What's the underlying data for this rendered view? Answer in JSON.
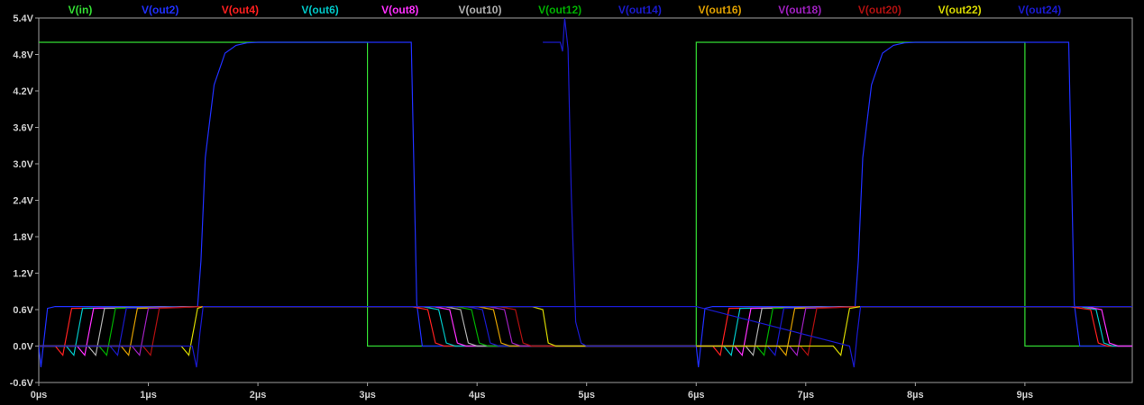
{
  "chart_data": {
    "type": "line",
    "title": "",
    "xlabel": "",
    "ylabel": "",
    "xlim": [
      0,
      9.98
    ],
    "ylim": [
      -0.6,
      5.4
    ],
    "x_ticks": [
      {
        "value": 0,
        "label": "0µs"
      },
      {
        "value": 1,
        "label": "1µs"
      },
      {
        "value": 2,
        "label": "2µs"
      },
      {
        "value": 3,
        "label": "3µs"
      },
      {
        "value": 4,
        "label": "4µs"
      },
      {
        "value": 5,
        "label": "5µs"
      },
      {
        "value": 6,
        "label": "6µs"
      },
      {
        "value": 7,
        "label": "7µs"
      },
      {
        "value": 8,
        "label": "8µs"
      },
      {
        "value": 9,
        "label": "9µs"
      }
    ],
    "y_ticks": [
      {
        "value": -0.6,
        "label": "-0.6V"
      },
      {
        "value": 0.0,
        "label": "0.0V"
      },
      {
        "value": 0.6,
        "label": "0.6V"
      },
      {
        "value": 1.2,
        "label": "1.2V"
      },
      {
        "value": 1.8,
        "label": "1.8V"
      },
      {
        "value": 2.4,
        "label": "2.4V"
      },
      {
        "value": 3.0,
        "label": "3.0V"
      },
      {
        "value": 3.6,
        "label": "3.6V"
      },
      {
        "value": 4.2,
        "label": "4.2V"
      },
      {
        "value": 4.8,
        "label": "4.8V"
      },
      {
        "value": 5.4,
        "label": "5.4V"
      }
    ],
    "legend_position": "top",
    "grid": false,
    "series": [
      {
        "name": "V(in)",
        "color": "#33dd33",
        "x": [
          0,
          3,
          3,
          6,
          6,
          9,
          9,
          9.98
        ],
        "y": [
          5,
          5,
          0,
          0,
          5,
          5,
          0,
          0
        ]
      },
      {
        "name": "V(out2)",
        "color": "#2030ff",
        "x": [
          0,
          0.02,
          0.08,
          0.15,
          1.45,
          1.48,
          1.52,
          1.6,
          1.7,
          1.8,
          1.9,
          2.0,
          3.4,
          3.45,
          3.5,
          6.0,
          6.02,
          6.08,
          6.15,
          7.45,
          7.48,
          7.52,
          7.6,
          7.7,
          7.8,
          7.9,
          8.0,
          9.4,
          9.45,
          9.5,
          9.98
        ],
        "y": [
          0.0,
          -0.35,
          0.62,
          0.65,
          0.65,
          1.4,
          3.1,
          4.3,
          4.82,
          4.95,
          4.99,
          5.0,
          5.0,
          0.7,
          0.0,
          0.0,
          -0.35,
          0.62,
          0.65,
          0.65,
          1.4,
          3.1,
          4.3,
          4.82,
          4.95,
          4.99,
          5.0,
          5.0,
          0.7,
          0.0,
          0.0
        ]
      },
      {
        "name": "V(out4)",
        "color": "#ff2020",
        "x": [
          0,
          0.15,
          0.22,
          0.3,
          1.5,
          3.4,
          3.55,
          3.62,
          3.7,
          6.0,
          6.15,
          6.22,
          6.3,
          7.5,
          9.4,
          9.6,
          9.67,
          9.75,
          9.98
        ],
        "y": [
          0.0,
          0.0,
          -0.15,
          0.62,
          0.65,
          0.65,
          0.6,
          0.05,
          0.0,
          0.0,
          0.0,
          -0.15,
          0.62,
          0.65,
          0.65,
          0.6,
          0.05,
          0.0,
          0.0
        ]
      },
      {
        "name": "V(out6)",
        "color": "#00c8c8",
        "x": [
          0,
          0.25,
          0.32,
          0.4,
          1.5,
          3.5,
          3.65,
          3.72,
          3.8,
          6.0,
          6.25,
          6.32,
          6.4,
          7.5,
          9.5,
          9.65,
          9.72,
          9.8,
          9.98
        ],
        "y": [
          0.0,
          0.0,
          -0.15,
          0.62,
          0.65,
          0.65,
          0.6,
          0.05,
          0.0,
          0.0,
          0.0,
          -0.15,
          0.62,
          0.65,
          0.65,
          0.6,
          0.05,
          0.0,
          0.0
        ]
      },
      {
        "name": "V(out8)",
        "color": "#ff30ff",
        "x": [
          0,
          0.35,
          0.42,
          0.5,
          1.5,
          3.6,
          3.75,
          3.82,
          3.9,
          6.0,
          6.35,
          6.42,
          6.5,
          7.5,
          9.55,
          9.7,
          9.77,
          9.85,
          9.98
        ],
        "y": [
          0.0,
          0.0,
          -0.15,
          0.62,
          0.65,
          0.65,
          0.6,
          0.05,
          0.0,
          0.0,
          0.0,
          -0.15,
          0.62,
          0.65,
          0.65,
          0.6,
          0.05,
          0.0,
          0.0
        ]
      },
      {
        "name": "V(out10)",
        "color": "#b0b0b0",
        "x": [
          0,
          0.45,
          0.52,
          0.6,
          1.5,
          3.7,
          3.85,
          3.92,
          4.0,
          6.0,
          6.45,
          6.52,
          6.6,
          7.5,
          9.98
        ],
        "y": [
          0.0,
          0.0,
          -0.15,
          0.62,
          0.65,
          0.65,
          0.6,
          0.05,
          0.0,
          0.0,
          0.0,
          -0.15,
          0.62,
          0.65,
          0.65
        ]
      },
      {
        "name": "V(out12)",
        "color": "#00b000",
        "x": [
          0,
          0.55,
          0.62,
          0.7,
          1.5,
          3.8,
          3.95,
          4.02,
          4.1,
          6.0,
          6.55,
          6.62,
          6.7,
          7.5,
          9.98
        ],
        "y": [
          0.0,
          0.0,
          -0.15,
          0.62,
          0.65,
          0.65,
          0.6,
          0.05,
          0.0,
          0.0,
          0.0,
          -0.15,
          0.62,
          0.65,
          0.65
        ]
      },
      {
        "name": "V(out14)",
        "color": "#1a1acc",
        "x": [
          0,
          0.65,
          0.72,
          0.8,
          1.5,
          3.9,
          4.05,
          4.12,
          4.2,
          4.7,
          4.76,
          4.8,
          4.83,
          4.9,
          5.0,
          6.0,
          6.65,
          6.72,
          6.8,
          7.5,
          9.98
        ],
        "y": [
          0.0,
          0.0,
          -0.15,
          0.62,
          0.65,
          0.65,
          0.6,
          0.05,
          0.0,
          0.0,
          0.0,
          0.0,
          0.0,
          0.0,
          0.0,
          0.0,
          0.0,
          -0.15,
          0.62,
          0.65,
          0.65
        ]
      },
      {
        "name": "V(out16)",
        "color": "#e0a000",
        "x": [
          0,
          0.75,
          0.82,
          0.9,
          1.5,
          4.0,
          4.15,
          4.22,
          4.3,
          6.0,
          6.75,
          6.82,
          6.9,
          7.5,
          9.98
        ],
        "y": [
          0.0,
          0.0,
          -0.15,
          0.62,
          0.65,
          0.65,
          0.6,
          0.05,
          0.0,
          0.0,
          0.0,
          -0.15,
          0.62,
          0.65,
          0.65
        ]
      },
      {
        "name": "V(out18)",
        "color": "#a020c0",
        "x": [
          0,
          0.85,
          0.92,
          1.0,
          1.5,
          4.1,
          4.25,
          4.32,
          4.4,
          6.0,
          6.85,
          6.92,
          7.0,
          7.5,
          9.98
        ],
        "y": [
          0.0,
          0.0,
          -0.15,
          0.62,
          0.65,
          0.65,
          0.6,
          0.05,
          0.0,
          0.0,
          0.0,
          -0.15,
          0.62,
          0.65,
          0.65
        ]
      },
      {
        "name": "V(out20)",
        "color": "#b01010",
        "x": [
          0,
          0.95,
          1.02,
          1.1,
          1.5,
          4.2,
          4.35,
          4.42,
          4.5,
          6.0,
          6.95,
          7.02,
          7.1,
          7.5,
          9.98
        ],
        "y": [
          0.0,
          0.0,
          -0.15,
          0.62,
          0.65,
          0.65,
          0.6,
          0.05,
          0.0,
          0.0,
          0.0,
          -0.15,
          0.62,
          0.65,
          0.65
        ]
      },
      {
        "name": "V(out22)",
        "color": "#d8d800",
        "x": [
          0,
          1.3,
          1.37,
          1.45,
          1.5,
          4.5,
          4.6,
          4.65,
          4.72,
          6.0,
          7.25,
          7.32,
          7.4,
          7.5,
          9.98
        ],
        "y": [
          0.0,
          0.0,
          -0.15,
          0.62,
          0.65,
          0.65,
          0.6,
          0.05,
          0.0,
          0.0,
          0.0,
          -0.15,
          0.62,
          0.65,
          0.65
        ]
      },
      {
        "name": "V(out24)",
        "color": "#1a1ad0",
        "x": [
          0,
          1.4,
          1.44,
          1.47,
          1.5,
          1.9,
          2.0,
          4.7,
          4.76,
          4.8,
          4.83,
          4.86,
          4.9,
          4.95,
          5.0,
          6.0,
          7.4,
          7.44,
          7.47,
          7.5,
          7.9,
          8.0,
          9.98
        ],
        "y": [
          0.0,
          0.0,
          -0.35,
          0.2,
          0.65,
          0.65,
          0.65,
          0.65,
          0.65,
          0.65,
          0.65,
          0.65,
          0.65,
          0.65,
          0.65,
          0.65,
          0.0,
          -0.35,
          0.2,
          0.65,
          0.65,
          0.65,
          0.65
        ]
      },
      {
        "name": "V(out14)",
        "color": "#1a1acc",
        "x": [
          4.6,
          4.76,
          4.78,
          4.8,
          4.83,
          4.86,
          4.9,
          4.95,
          5.0,
          5.5,
          6.0
        ],
        "y": [
          5.0,
          5.0,
          4.85,
          5.4,
          4.9,
          2.5,
          0.4,
          0.05,
          0.0,
          0.0,
          0.0
        ]
      }
    ]
  }
}
